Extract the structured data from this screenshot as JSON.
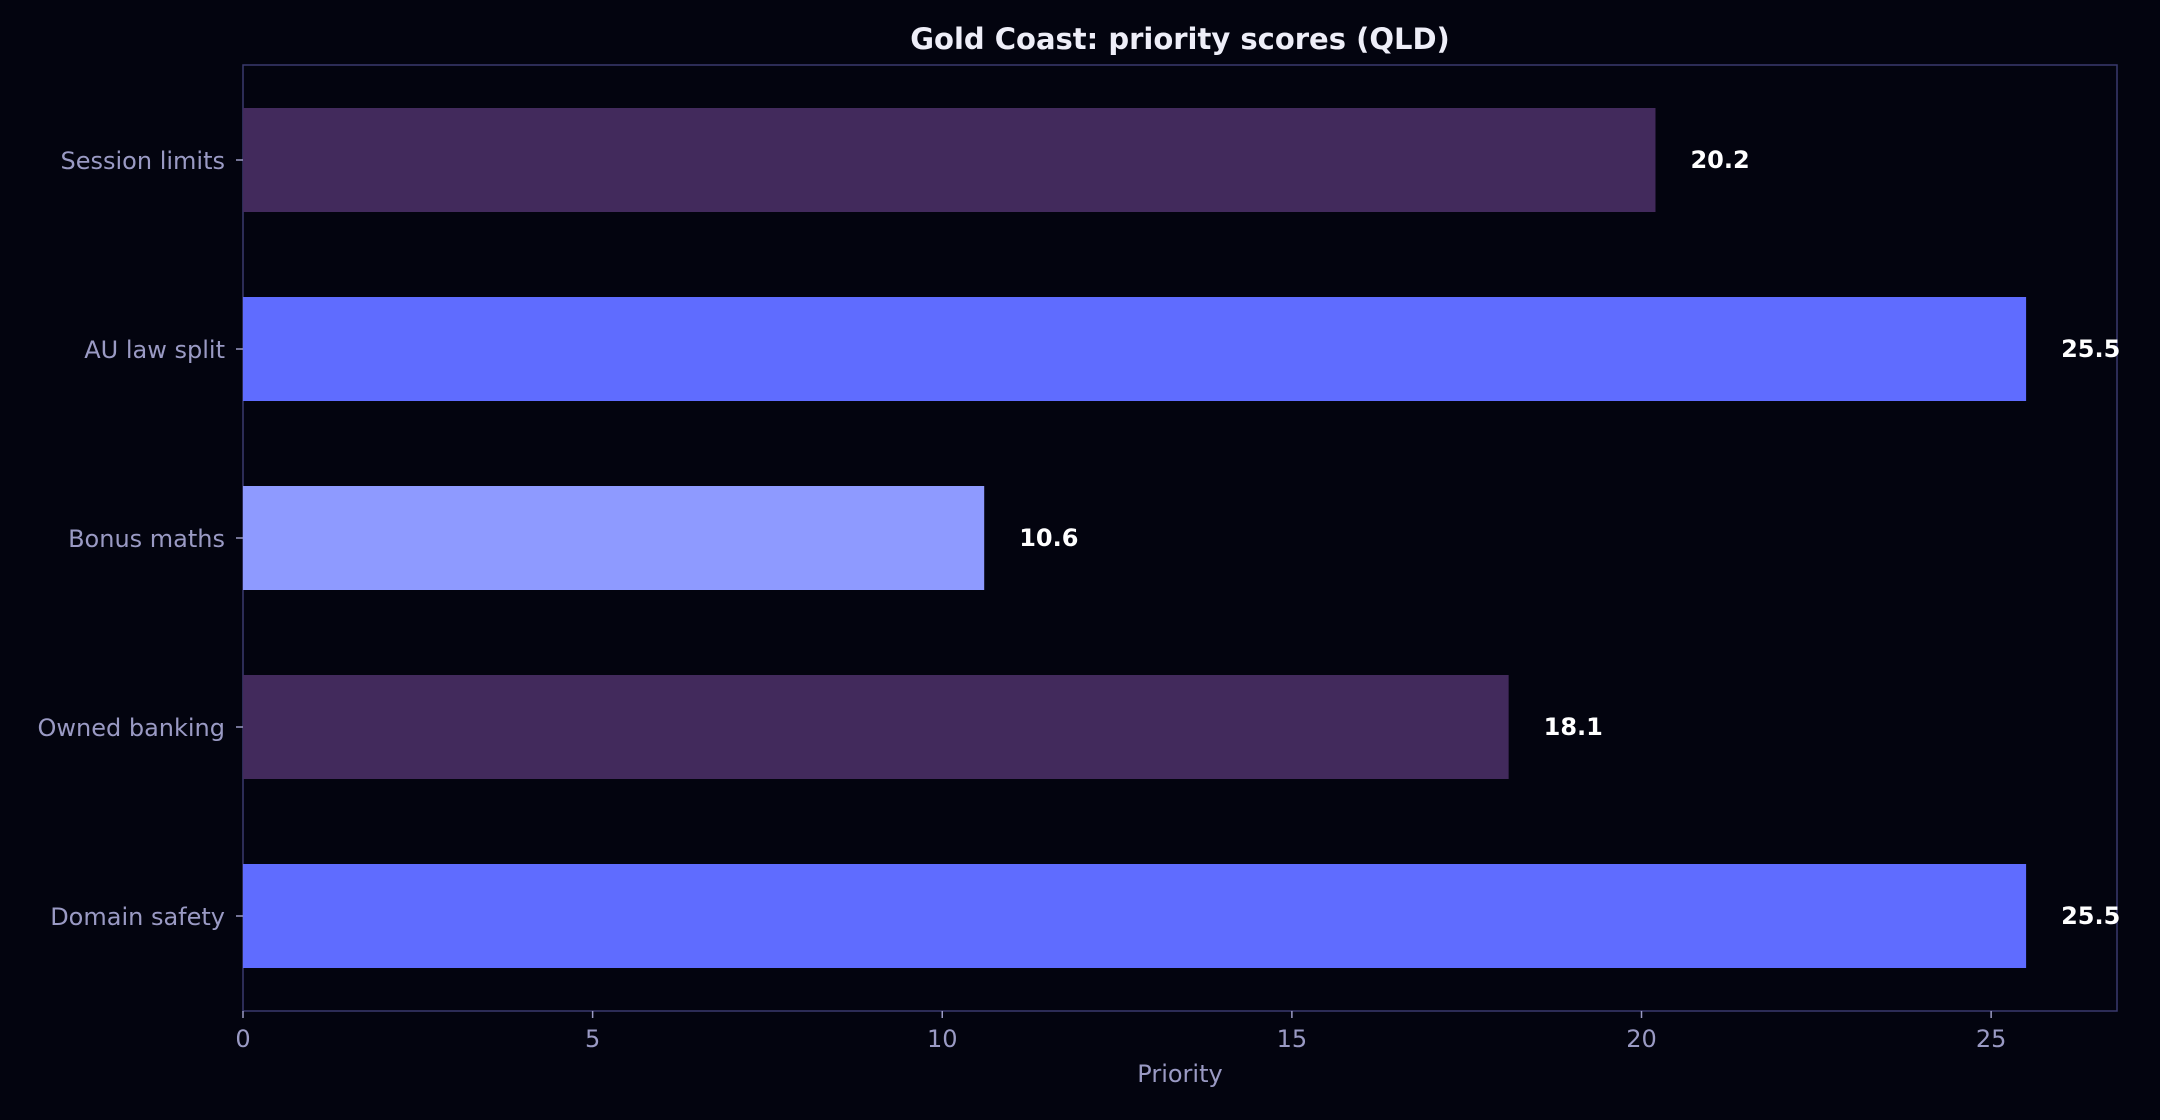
{
  "colors": {
    "background": "#03040f",
    "axis": "#3a3a6e",
    "tick_text": "#9a9ac4",
    "title_text": "#eeeef8",
    "value_label": "#ffffff"
  },
  "chart_data": {
    "type": "bar",
    "orientation": "horizontal",
    "title": "Gold Coast: priority scores (QLD)",
    "xlabel": "Priority",
    "ylabel": "",
    "categories": [
      "Session limits",
      "AU law split",
      "Bonus maths",
      "Owned banking",
      "Domain safety"
    ],
    "values": [
      20.2,
      25.5,
      10.6,
      18.1,
      25.5
    ],
    "value_labels": [
      "20.2",
      "25.5",
      "10.6",
      "18.1",
      "25.5"
    ],
    "bar_colors": [
      "#422a5c",
      "#5f6cff",
      "#8e9aff",
      "#422a5c",
      "#5f6cff"
    ],
    "xlim": [
      0,
      26.8
    ],
    "xticks": [
      0,
      5,
      10,
      15,
      20,
      25
    ],
    "xtick_labels": [
      "0",
      "5",
      "10",
      "15",
      "20",
      "25"
    ],
    "grid": false,
    "legend": "none"
  }
}
